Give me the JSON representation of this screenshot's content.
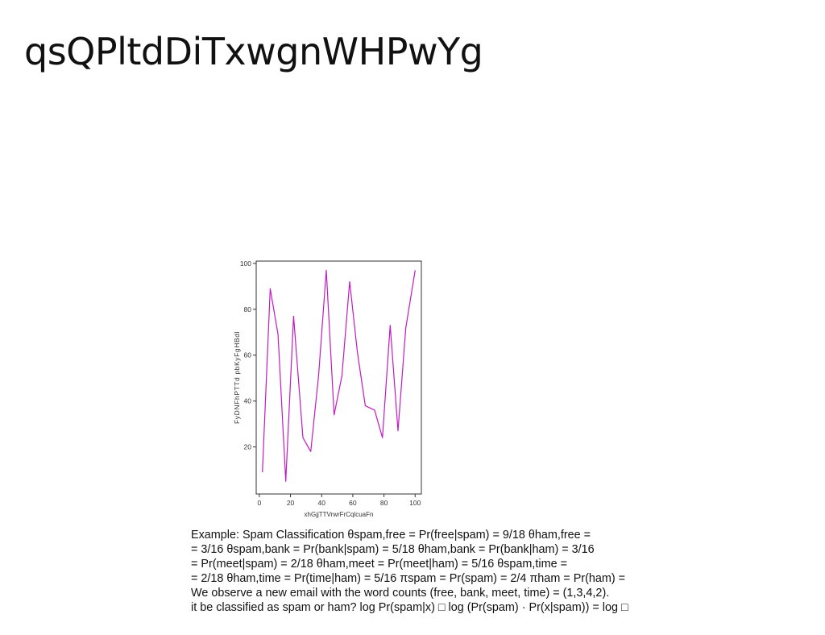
{
  "slide": {
    "title": "qsQPltdDiTxwgnWHPwYg"
  },
  "colors": {
    "line": "#c21bc2",
    "axis": "#333333",
    "text": "#111111"
  },
  "chart_data": {
    "type": "line",
    "title": "",
    "xlabel": "xhGjjTTVrwrFrCqlcuaFn",
    "ylabel": "FyDNFhPTTd pbKyFgHBdl",
    "xlim": [
      -2,
      104
    ],
    "ylim": [
      -0.5,
      101
    ],
    "xticks": [
      0,
      20,
      40,
      60,
      80,
      100
    ],
    "yticks": [
      20,
      40,
      60,
      80,
      100
    ],
    "grid": false,
    "series": [
      {
        "x": [
          2,
          7,
          12,
          17,
          22,
          28,
          33,
          38,
          43,
          48,
          53,
          58,
          63,
          68,
          74,
          79,
          84,
          89,
          94,
          100
        ],
        "y": [
          9,
          89,
          69,
          5,
          77,
          24,
          18,
          51,
          97,
          34,
          51,
          92,
          61,
          38,
          36,
          24,
          73,
          27,
          72,
          97
        ]
      }
    ]
  },
  "body": {
    "lines": [
      "Example: Spam Classification θspam,free = Pr(free|spam) = 9/18 θham,free =",
      "= 3/16 θspam,bank = Pr(bank|spam) = 5/18 θham,bank = Pr(bank|ham) = 3/16",
      "= Pr(meet|spam) = 2/18 θham,meet = Pr(meet|ham) = 5/16 θspam,time =",
      "= 2/18 θham,time = Pr(time|ham) = 5/16 πspam = Pr(spam) = 2/4 πham = Pr(ham) =",
      "We observe a new email with the word counts (free, bank, meet, time) = (1,3,4,2).",
      "it be classified as spam or ham? log Pr(spam|x) □ log (Pr(spam) · Pr(x|spam)) = log □"
    ]
  }
}
